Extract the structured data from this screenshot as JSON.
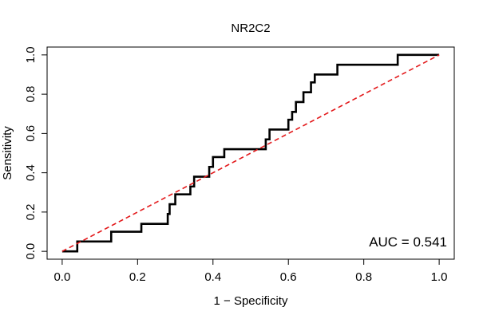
{
  "chart_data": {
    "type": "line",
    "title": "NR2C2",
    "xlabel": "1 − Specificity",
    "ylabel": "Sensitivity",
    "xlim": [
      -0.04,
      1.04
    ],
    "ylim": [
      -0.04,
      1.04
    ],
    "xticks": [
      "0.0",
      "0.2",
      "0.4",
      "0.6",
      "0.8",
      "1.0"
    ],
    "yticks": [
      "0.0",
      "0.2",
      "0.4",
      "0.6",
      "0.8",
      "1.0"
    ],
    "annotation": "AUC = 0.541",
    "series": [
      {
        "name": "ROC",
        "color": "#000000",
        "style": "solid",
        "points": [
          [
            0.0,
            0.0
          ],
          [
            0.04,
            0.0
          ],
          [
            0.04,
            0.05
          ],
          [
            0.13,
            0.05
          ],
          [
            0.13,
            0.1
          ],
          [
            0.21,
            0.1
          ],
          [
            0.21,
            0.14
          ],
          [
            0.28,
            0.14
          ],
          [
            0.28,
            0.19
          ],
          [
            0.285,
            0.19
          ],
          [
            0.285,
            0.24
          ],
          [
            0.3,
            0.24
          ],
          [
            0.3,
            0.29
          ],
          [
            0.34,
            0.29
          ],
          [
            0.34,
            0.33
          ],
          [
            0.35,
            0.33
          ],
          [
            0.35,
            0.38
          ],
          [
            0.39,
            0.38
          ],
          [
            0.39,
            0.43
          ],
          [
            0.4,
            0.43
          ],
          [
            0.4,
            0.48
          ],
          [
            0.43,
            0.48
          ],
          [
            0.43,
            0.52
          ],
          [
            0.54,
            0.52
          ],
          [
            0.54,
            0.57
          ],
          [
            0.55,
            0.57
          ],
          [
            0.55,
            0.62
          ],
          [
            0.6,
            0.62
          ],
          [
            0.6,
            0.67
          ],
          [
            0.61,
            0.67
          ],
          [
            0.61,
            0.71
          ],
          [
            0.62,
            0.71
          ],
          [
            0.62,
            0.76
          ],
          [
            0.64,
            0.76
          ],
          [
            0.64,
            0.81
          ],
          [
            0.66,
            0.81
          ],
          [
            0.66,
            0.86
          ],
          [
            0.67,
            0.86
          ],
          [
            0.67,
            0.9
          ],
          [
            0.73,
            0.9
          ],
          [
            0.73,
            0.95
          ],
          [
            0.89,
            0.95
          ],
          [
            0.89,
            1.0
          ],
          [
            1.0,
            1.0
          ]
        ]
      },
      {
        "name": "Reference",
        "color": "#e31a1c",
        "style": "dashed",
        "points": [
          [
            0.0,
            0.0
          ],
          [
            1.0,
            1.0
          ]
        ]
      }
    ]
  }
}
